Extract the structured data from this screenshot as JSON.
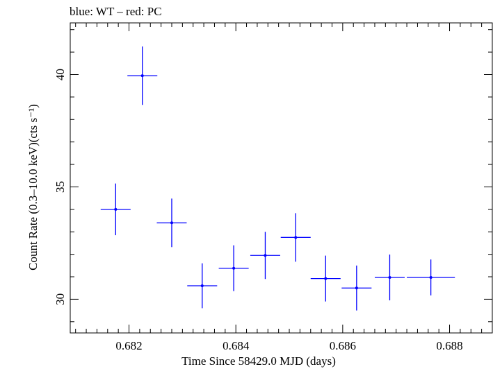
{
  "chart_data": {
    "type": "scatter",
    "title": "blue: WT – red: PC",
    "xlabel": "Time Since 58429.0 MJD (days)",
    "ylabel": "Count Rate (0.3–10.0 keV)(cts s⁻¹)",
    "xlim": [
      0.6809,
      0.6888
    ],
    "ylim": [
      28.5,
      42.3
    ],
    "x_ticks": [
      0.682,
      0.684,
      0.686,
      0.688
    ],
    "x_tick_labels": [
      "0.682",
      "0.684",
      "0.686",
      "0.688"
    ],
    "y_ticks": [
      30,
      35,
      40
    ],
    "y_tick_labels": [
      "30",
      "35",
      "40"
    ],
    "grid": false,
    "series": [
      {
        "mode": "WT",
        "color": "#0000ff",
        "points": [
          {
            "x": 0.68175,
            "y": 34.0,
            "xerr": 0.00028,
            "yerr": 1.15
          },
          {
            "x": 0.68225,
            "y": 39.95,
            "xerr": 0.00028,
            "yerr": 1.3
          },
          {
            "x": 0.6828,
            "y": 33.4,
            "xerr": 0.00028,
            "yerr": 1.08
          },
          {
            "x": 0.68337,
            "y": 30.6,
            "xerr": 0.00028,
            "yerr": 1.0
          },
          {
            "x": 0.68396,
            "y": 31.38,
            "xerr": 0.00028,
            "yerr": 1.02
          },
          {
            "x": 0.68455,
            "y": 31.95,
            "xerr": 0.00028,
            "yerr": 1.05
          },
          {
            "x": 0.68512,
            "y": 32.75,
            "xerr": 0.00028,
            "yerr": 1.08
          },
          {
            "x": 0.68568,
            "y": 30.92,
            "xerr": 0.00028,
            "yerr": 1.02
          },
          {
            "x": 0.68626,
            "y": 30.5,
            "xerr": 0.00028,
            "yerr": 1.0
          },
          {
            "x": 0.68688,
            "y": 30.97,
            "xerr": 0.00028,
            "yerr": 1.02
          },
          {
            "x": 0.68765,
            "y": 30.97,
            "xerr": 0.00045,
            "yerr": 0.8
          }
        ]
      }
    ]
  }
}
